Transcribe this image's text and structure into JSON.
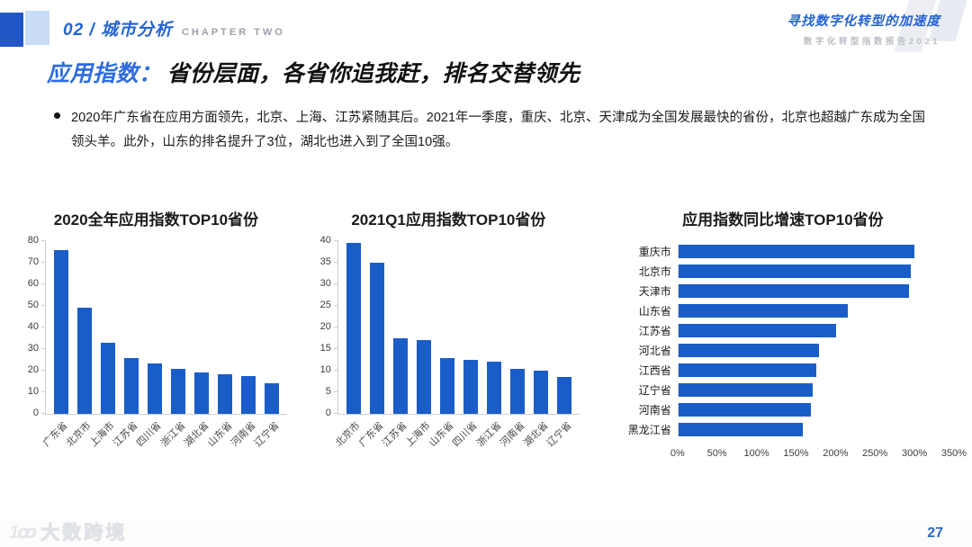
{
  "header": {
    "chapter_number_title": "02 / 城市分析",
    "chapter_label": "CHAPTER TWO",
    "report_title": "寻找数字化转型的加速度",
    "report_subtitle": "数字化转型指数报告2021"
  },
  "title": {
    "highlight": "应用指数：",
    "rest": "省份层面，各省你追我赶，排名交替领先"
  },
  "bullet": {
    "text": "2020年广东省在应用方面领先，北京、上海、江苏紧随其后。2021年一季度，重庆、北京、天津成为全国发展最快的省份，北京也超越广东成为全国领头羊。此外，山东的排名提升了3位，湖北也进入到了全国10强。"
  },
  "colors": {
    "bar": "#1a5dc8",
    "accent": "#2463d6"
  },
  "chart_data": [
    {
      "type": "bar",
      "orientation": "vertical",
      "title": "2020全年应用指数TOP10省份",
      "categories": [
        "广东省",
        "北京市",
        "上海市",
        "江苏省",
        "四川省",
        "浙江省",
        "湖北省",
        "山东省",
        "河南省",
        "辽宁省"
      ],
      "values": [
        76,
        49,
        33,
        26,
        23.5,
        21,
        19,
        18.5,
        17.5,
        14
      ],
      "ylim": [
        0,
        80
      ],
      "ytick_step": 10,
      "grid": false,
      "legend": "none"
    },
    {
      "type": "bar",
      "orientation": "vertical",
      "title": "2021Q1应用指数TOP10省份",
      "categories": [
        "北京市",
        "广东省",
        "江苏省",
        "上海市",
        "山东省",
        "四川省",
        "浙江省",
        "河南省",
        "湖北省",
        "辽宁省"
      ],
      "values": [
        39.5,
        35,
        17.5,
        17,
        13,
        12.5,
        12,
        10.5,
        10,
        8.5
      ],
      "ylim": [
        0,
        40
      ],
      "ytick_step": 5,
      "grid": false,
      "legend": "none"
    },
    {
      "type": "bar",
      "orientation": "horizontal",
      "title": "应用指数同比增速TOP10省份",
      "categories": [
        "重庆市",
        "北京市",
        "天津市",
        "山东省",
        "江苏省",
        "河北省",
        "江西省",
        "辽宁省",
        "河南省",
        "黑龙江省"
      ],
      "values": [
        300,
        295,
        293,
        215,
        200,
        178,
        175,
        170,
        168,
        158
      ],
      "xlim": [
        0,
        350
      ],
      "xtick_step": 50,
      "unit": "%",
      "grid": false,
      "legend": "none"
    }
  ],
  "footer": {
    "logo_icon": "1ꝏ",
    "logo_text": "大数跨境",
    "page_number": "27"
  }
}
